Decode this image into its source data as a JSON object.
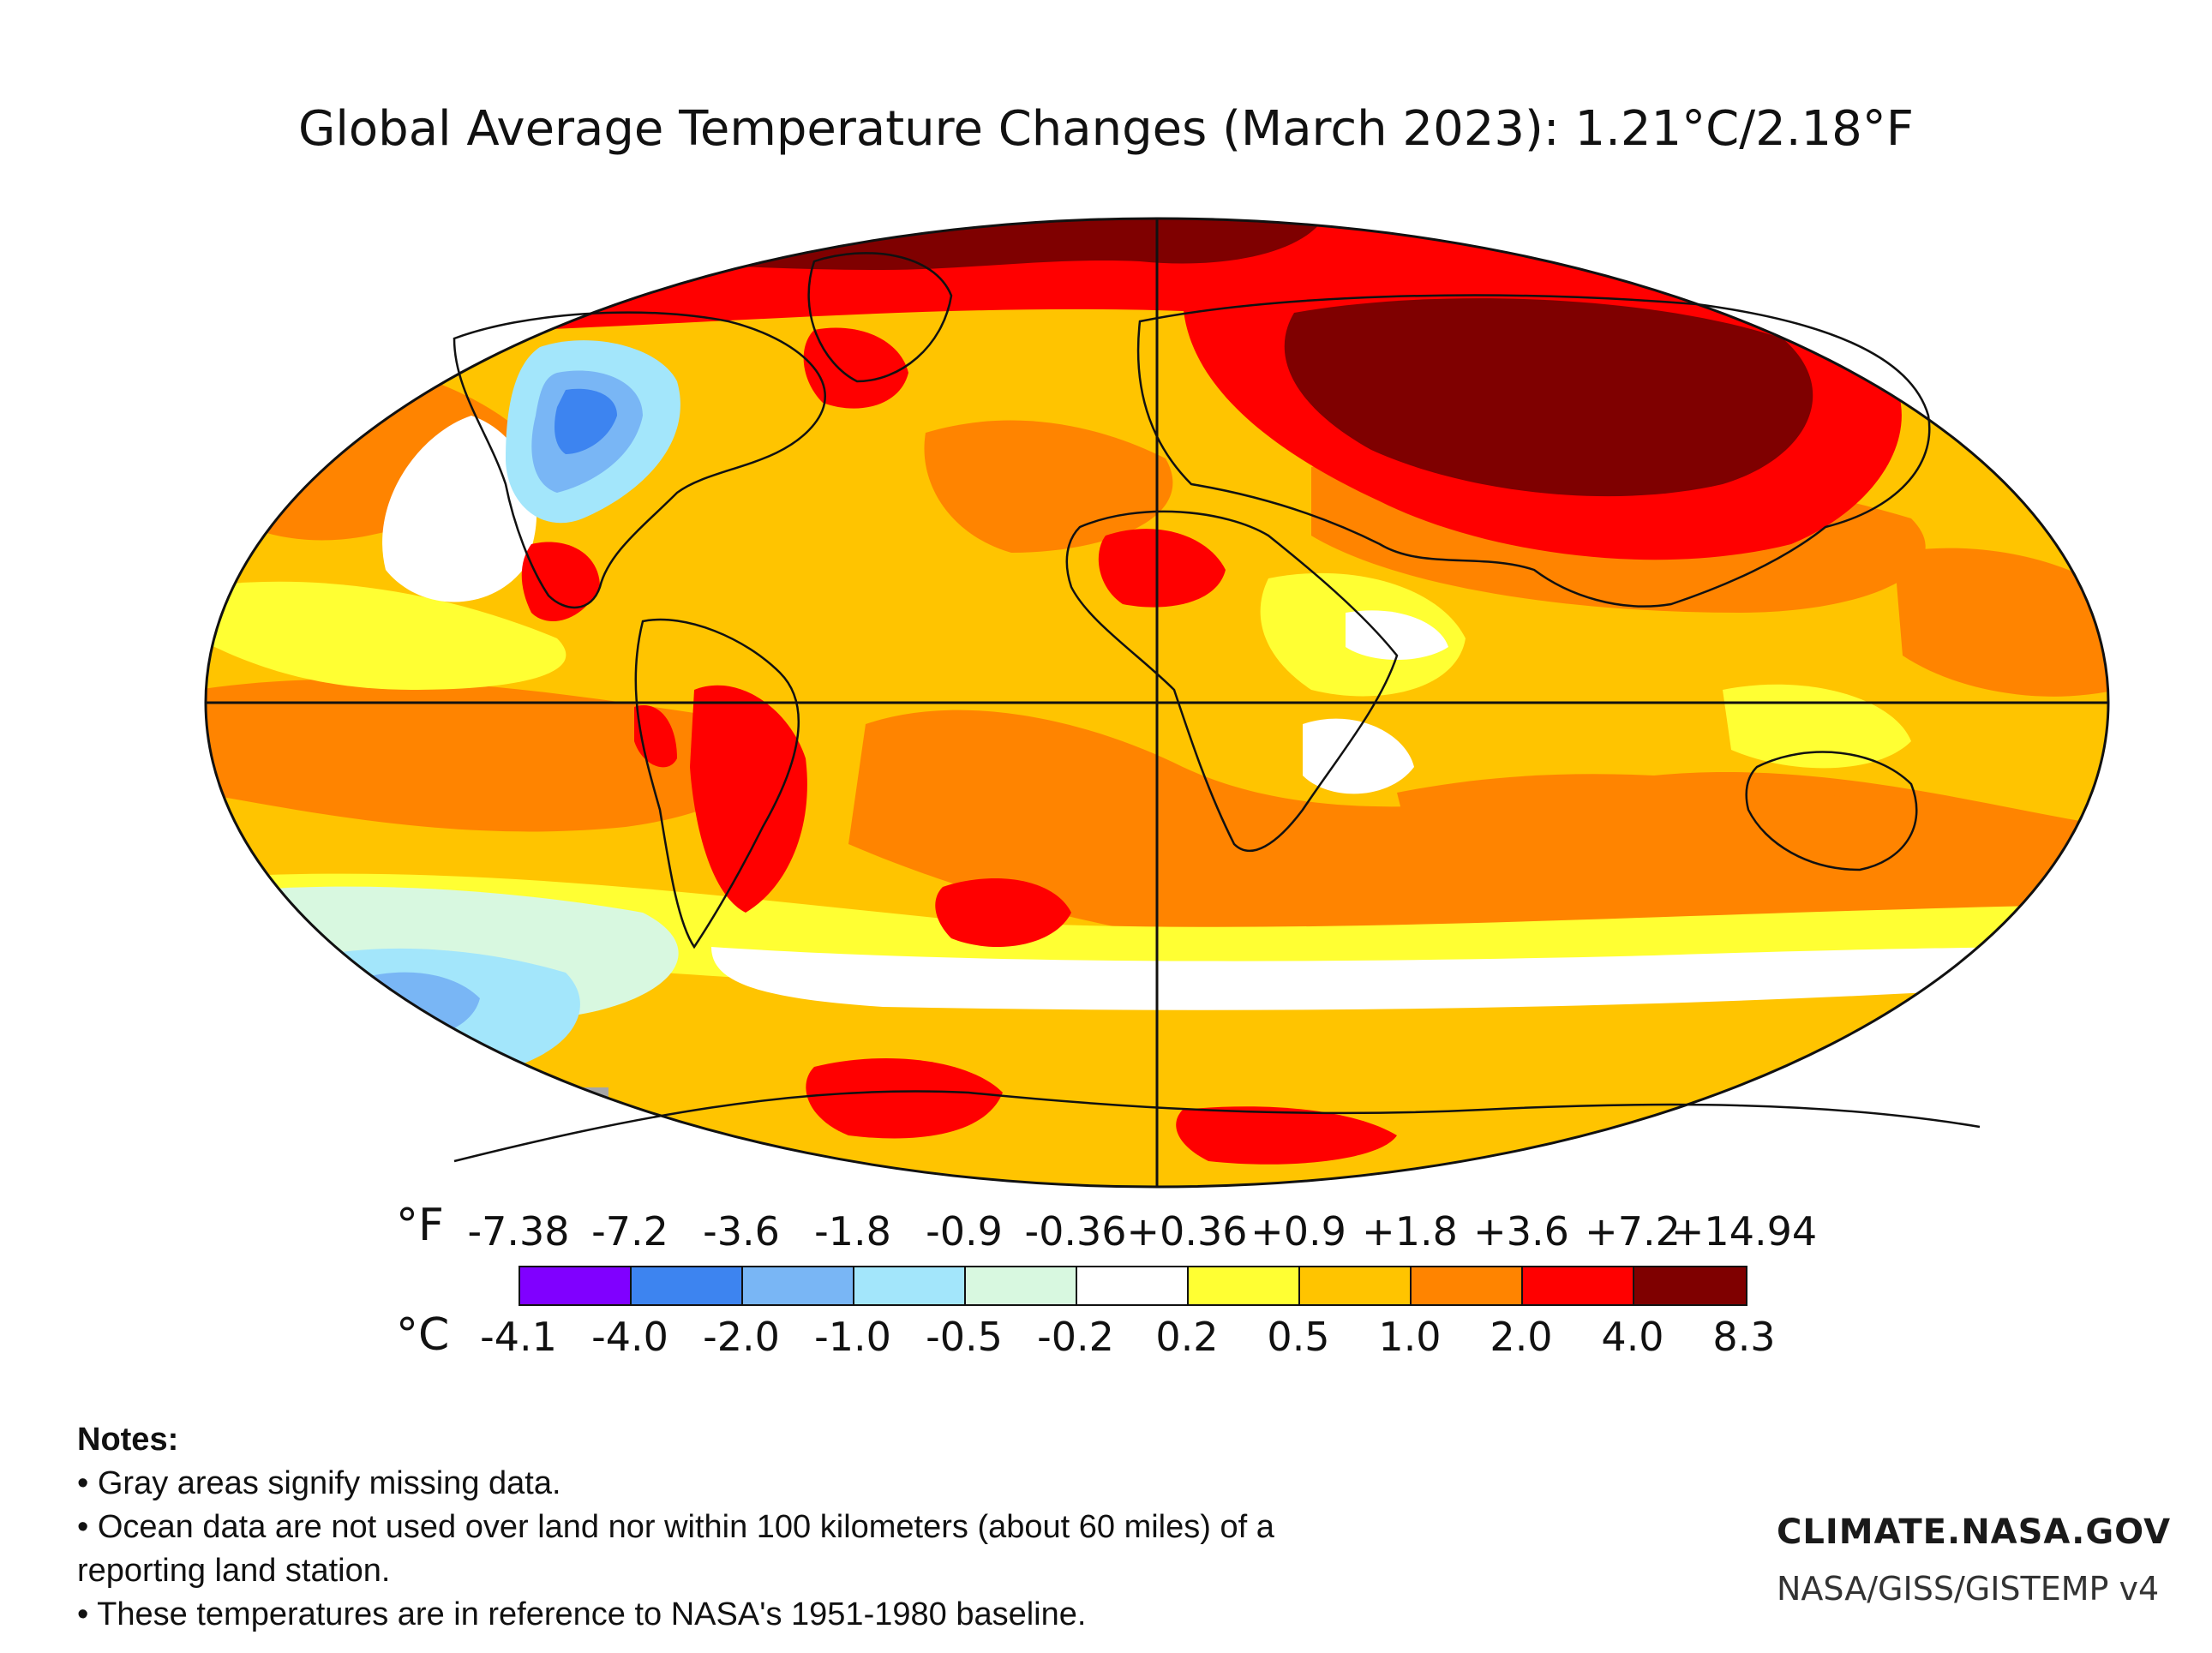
{
  "title": "Global Average Temperature Changes (March 2023): 1.21°C/2.18°F",
  "legend": {
    "unit_f": "°F",
    "unit_c": "°C",
    "f_ticks": [
      "-7.38",
      "-7.2",
      "-3.6",
      "-1.8",
      "-0.9",
      "-0.36",
      "+0.36",
      "+0.9",
      "+1.8",
      "+3.6",
      "+7.2",
      "+14.94"
    ],
    "c_ticks": [
      "-4.1",
      "-4.0",
      "-2.0",
      "-1.0",
      "-0.5",
      "-0.2",
      "0.2",
      "0.5",
      "1.0",
      "2.0",
      "4.0",
      "8.3"
    ],
    "colors": [
      "#8000ff",
      "#3d84f0",
      "#79b6f5",
      "#a3e6fb",
      "#d8f8e0",
      "#ffffff",
      "#ffff33",
      "#ffc400",
      "#ff8400",
      "#ff0000",
      "#7f0000"
    ]
  },
  "map": {
    "projection": "Robinson",
    "palette": {
      "ocean_base": "#ffc400",
      "dark_red": "#7f0000",
      "red": "#ff0000",
      "orange": "#ff8400",
      "yellow": "#ffff33",
      "white": "#ffffff",
      "pale_green": "#d8f8e0",
      "light_blue": "#a3e6fb",
      "mid_blue": "#79b6f5",
      "blue": "#3d84f0",
      "missing_gray": "#a6a6a6",
      "outline": "#111111"
    }
  },
  "notes": {
    "heading": "Notes:",
    "lines": [
      "• Gray areas signify missing data.",
      "• Ocean data are not used over land nor within 100 kilometers (about 60 miles) of a",
      "reporting land station.",
      "• These temperatures are in reference to NASA's 1951-1980 baseline."
    ]
  },
  "branding": {
    "site": "CLIMATE.NASA.GOV",
    "source": "NASA/GISS/GISTEMP v4"
  }
}
